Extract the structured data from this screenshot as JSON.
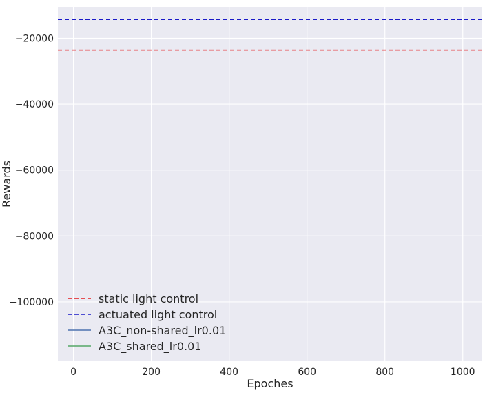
{
  "chart_data": {
    "type": "line",
    "title": "",
    "xlabel": "Epoches",
    "ylabel": "Rewards",
    "xlim": [
      -40,
      1050
    ],
    "ylim": [
      -118000,
      -10500
    ],
    "xticks": [
      0,
      200,
      400,
      600,
      800,
      1000
    ],
    "yticks": [
      -100000,
      -80000,
      -60000,
      -40000,
      -20000
    ],
    "xtick_labels": [
      "0",
      "200",
      "400",
      "600",
      "800",
      "1000"
    ],
    "ytick_labels": [
      "−100000",
      "−80000",
      "−60000",
      "−40000",
      "−20000"
    ],
    "grid": true,
    "legend_position": "lower-left",
    "series": [
      {
        "name": "static light control",
        "style": "dashed",
        "color": "#e41a1c",
        "x": [
          -40,
          1050
        ],
        "y": [
          -23600,
          -23600
        ]
      },
      {
        "name": "actuated light control",
        "style": "dashed",
        "color": "#1a1ac8",
        "x": [
          -40,
          1050
        ],
        "y": [
          -14300,
          -14300
        ]
      },
      {
        "name": "A3C_non-shared_lr0.01",
        "style": "solid",
        "color": "#4c72b0",
        "x": [],
        "y": []
      },
      {
        "name": "A3C_shared_lr0.01",
        "style": "solid",
        "color": "#55a868",
        "x": [],
        "y": []
      }
    ]
  }
}
